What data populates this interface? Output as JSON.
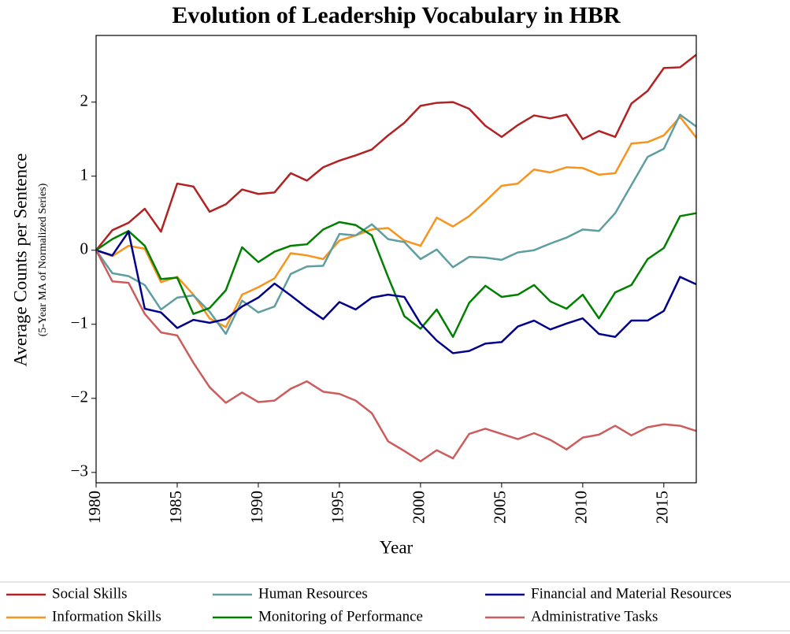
{
  "chart_data": {
    "type": "line",
    "title": "Evolution of Leadership Vocabulary in HBR",
    "xlabel": "Year",
    "ylabel": "Average Counts per Sentence",
    "ylabel_sub": "(5-Year MA of Normalized Series)",
    "x": [
      1980,
      1981,
      1982,
      1983,
      1984,
      1985,
      1986,
      1987,
      1988,
      1989,
      1990,
      1991,
      1992,
      1993,
      1994,
      1995,
      1996,
      1997,
      1998,
      1999,
      2000,
      2001,
      2002,
      2003,
      2004,
      2005,
      2006,
      2007,
      2008,
      2009,
      2010,
      2011,
      2012,
      2013,
      2014,
      2015,
      2016,
      2017
    ],
    "xlim": [
      1980,
      2017
    ],
    "xticks": [
      1980,
      1985,
      1990,
      1995,
      2000,
      2005,
      2010,
      2015
    ],
    "ylim": [
      -3.14,
      2.9
    ],
    "yticks": [
      {
        "value": -3,
        "label": "−3"
      },
      {
        "value": -2,
        "label": "−2"
      },
      {
        "value": -1,
        "label": "−1"
      },
      0,
      1,
      2
    ],
    "series": [
      {
        "name": "Social Skills",
        "color": "#b22222",
        "values": [
          0,
          0.27,
          0.37,
          0.56,
          0.25,
          0.9,
          0.86,
          0.52,
          0.62,
          0.82,
          0.76,
          0.78,
          1.04,
          0.94,
          1.12,
          1.21,
          1.28,
          1.36,
          1.55,
          1.72,
          1.95,
          1.99,
          2.0,
          1.91,
          1.68,
          1.53,
          1.69,
          1.82,
          1.78,
          1.83,
          1.5,
          1.61,
          1.53,
          1.98,
          2.15,
          2.46,
          2.47,
          2.64
        ]
      },
      {
        "name": "Information Skills",
        "color": "#f7941d",
        "values": [
          0,
          -0.08,
          0.06,
          0.02,
          -0.43,
          -0.36,
          -0.6,
          -0.92,
          -1.04,
          -0.6,
          -0.5,
          -0.38,
          -0.04,
          -0.07,
          -0.12,
          0.13,
          0.2,
          0.28,
          0.3,
          0.13,
          0.06,
          0.44,
          0.32,
          0.46,
          0.66,
          0.87,
          0.9,
          1.09,
          1.05,
          1.12,
          1.11,
          1.02,
          1.04,
          1.44,
          1.46,
          1.55,
          1.8,
          1.52
        ]
      },
      {
        "name": "Human Resources",
        "color": "#5f9ea0",
        "values": [
          0,
          -0.31,
          -0.35,
          -0.47,
          -0.8,
          -0.64,
          -0.61,
          -0.83,
          -1.13,
          -0.68,
          -0.84,
          -0.76,
          -0.32,
          -0.22,
          -0.21,
          0.22,
          0.2,
          0.35,
          0.15,
          0.11,
          -0.12,
          0.01,
          -0.23,
          -0.09,
          -0.1,
          -0.13,
          -0.03,
          0.0,
          0.09,
          0.17,
          0.28,
          0.26,
          0.5,
          0.88,
          1.26,
          1.37,
          1.83,
          1.67
        ]
      },
      {
        "name": "Monitoring of Performance",
        "color": "#008000",
        "values": [
          0,
          0.15,
          0.26,
          0.06,
          -0.39,
          -0.37,
          -0.86,
          -0.78,
          -0.54,
          0.04,
          -0.16,
          -0.02,
          0.06,
          0.08,
          0.28,
          0.38,
          0.34,
          0.2,
          -0.36,
          -0.89,
          -1.06,
          -0.8,
          -1.17,
          -0.71,
          -0.48,
          -0.63,
          -0.6,
          -0.47,
          -0.69,
          -0.79,
          -0.6,
          -0.92,
          -0.57,
          -0.47,
          -0.12,
          0.03,
          0.46,
          0.5
        ]
      },
      {
        "name": "Financial and Material Resources",
        "color": "#00008b",
        "values": [
          0,
          -0.07,
          0.25,
          -0.79,
          -0.84,
          -1.05,
          -0.94,
          -0.98,
          -0.93,
          -0.76,
          -0.64,
          -0.45,
          -0.61,
          -0.78,
          -0.93,
          -0.7,
          -0.8,
          -0.64,
          -0.6,
          -0.63,
          -0.99,
          -1.22,
          -1.39,
          -1.36,
          -1.26,
          -1.24,
          -1.03,
          -0.95,
          -1.07,
          -0.99,
          -0.92,
          -1.13,
          -1.17,
          -0.95,
          -0.95,
          -0.82,
          -0.36,
          -0.46
        ]
      },
      {
        "name": "Administrative Tasks",
        "color": "#cd5c5c",
        "values": [
          0,
          -0.42,
          -0.44,
          -0.86,
          -1.11,
          -1.15,
          -1.52,
          -1.85,
          -2.06,
          -1.92,
          -2.05,
          -2.03,
          -1.87,
          -1.77,
          -1.91,
          -1.94,
          -2.03,
          -2.2,
          -2.58,
          -2.71,
          -2.85,
          -2.7,
          -2.81,
          -2.48,
          -2.41,
          -2.48,
          -2.55,
          -2.47,
          -2.56,
          -2.69,
          -2.53,
          -2.49,
          -2.37,
          -2.5,
          -2.39,
          -2.35,
          -2.37,
          -2.44
        ]
      }
    ]
  }
}
